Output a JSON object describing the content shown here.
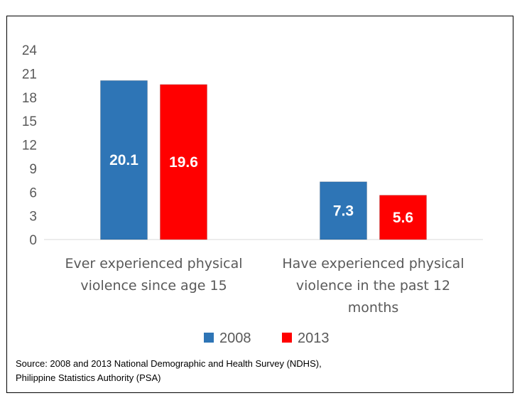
{
  "chart_data": {
    "type": "bar",
    "categories": [
      [
        "Ever experienced physical",
        "violence since age 15"
      ],
      [
        "Have experienced physical",
        "violence in the past 12",
        "months"
      ]
    ],
    "series": [
      {
        "name": "2008",
        "color": "#2e75b6",
        "values": [
          20.1,
          7.3
        ]
      },
      {
        "name": "2013",
        "color": "#ff0000",
        "values": [
          19.6,
          5.6
        ]
      }
    ],
    "yticks": [
      "0",
      "3",
      "6",
      "9",
      "12",
      "15",
      "18",
      "21",
      "24"
    ],
    "ylim": [
      0,
      24
    ],
    "grid": false,
    "legend": "bottom",
    "source": [
      "Source: 2008 and 2013 National Demographic and Health Survey (NDHS),",
      "Philippine Statistics Authority (PSA)"
    ]
  }
}
